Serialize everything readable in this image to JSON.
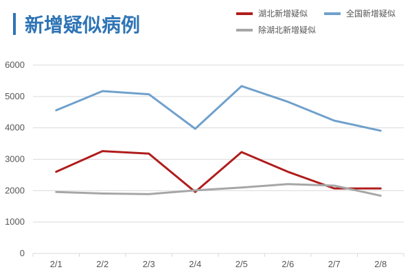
{
  "chart_data": {
    "type": "line",
    "title": "新增疑似病例",
    "categories": [
      "2/1",
      "2/2",
      "2/3",
      "2/4",
      "2/5",
      "2/6",
      "2/7",
      "2/8"
    ],
    "ylim": [
      0,
      6000
    ],
    "yticks": [
      "0",
      "1000",
      "2000",
      "3000",
      "4000",
      "5000",
      "6000"
    ],
    "grid": true,
    "legend_position": "top-right",
    "title_bar_color": "#2e74b5",
    "title_color": "#2e74b5",
    "series": [
      {
        "name": "湖北新增疑似",
        "color": "#b01c1c",
        "values": [
          2600,
          3260,
          3180,
          1960,
          3230,
          2600,
          2070,
          2070
        ]
      },
      {
        "name": "全国新增疑似",
        "color": "#6fa0cc",
        "values": [
          4560,
          5170,
          5070,
          3970,
          5330,
          4830,
          4230,
          3910
        ]
      },
      {
        "name": "除湖北新增疑似",
        "color": "#a6a6a6",
        "values": [
          1960,
          1910,
          1890,
          2010,
          2100,
          2210,
          2160,
          1840
        ]
      }
    ]
  }
}
